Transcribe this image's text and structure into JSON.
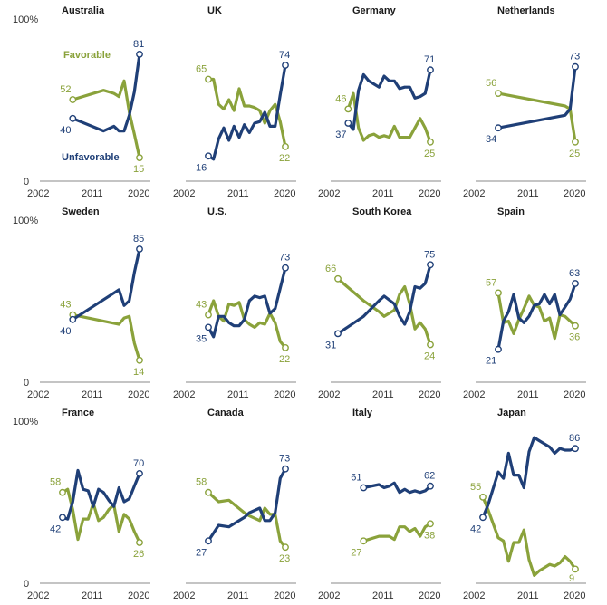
{
  "colors": {
    "favorable": "#8aa23b",
    "unfavorable": "#1f3f77",
    "axis": "#888888"
  },
  "legend": {
    "favorable": "Favorable",
    "unfavorable": "Unfavorable"
  },
  "axis_labels": {
    "y_top": "100%",
    "y_bottom": "0",
    "x_ticks": [
      "2002",
      "2011",
      "2020"
    ]
  },
  "chart_data": {
    "type": "line",
    "xlim": [
      2002,
      2020
    ],
    "ylim": [
      0,
      100
    ],
    "panels": [
      {
        "title": "Australia",
        "favorable": {
          "x": [
            2007,
            2013,
            2015,
            2016,
            2017,
            2018,
            2019,
            2020
          ],
          "y": [
            52,
            58,
            56,
            54,
            64,
            44,
            30,
            15
          ]
        },
        "unfavorable": {
          "x": [
            2007,
            2013,
            2015,
            2016,
            2017,
            2018,
            2019,
            2020
          ],
          "y": [
            40,
            32,
            35,
            32,
            32,
            42,
            57,
            81
          ]
        },
        "label_fav_start": "52",
        "label_fav_end": "15",
        "label_unf_start": "40",
        "label_unf_end": "81"
      },
      {
        "title": "UK",
        "favorable": {
          "x": [
            2005,
            2006,
            2007,
            2008,
            2009,
            2010,
            2011,
            2012,
            2013,
            2014,
            2015,
            2016,
            2017,
            2018,
            2019,
            2020
          ],
          "y": [
            65,
            65,
            49,
            46,
            52,
            45,
            59,
            48,
            48,
            47,
            45,
            37,
            45,
            49,
            38,
            22
          ]
        },
        "unfavorable": {
          "x": [
            2005,
            2006,
            2007,
            2008,
            2009,
            2010,
            2011,
            2012,
            2013,
            2014,
            2015,
            2016,
            2017,
            2018,
            2019,
            2020
          ],
          "y": [
            16,
            14,
            27,
            34,
            26,
            35,
            28,
            36,
            31,
            37,
            38,
            44,
            35,
            35,
            55,
            74
          ]
        },
        "label_fav_start": "65",
        "label_fav_end": "22",
        "label_unf_start": "16",
        "label_unf_end": "74"
      },
      {
        "title": "Germany",
        "favorable": {
          "x": [
            2004,
            2005,
            2006,
            2007,
            2008,
            2009,
            2010,
            2011,
            2012,
            2013,
            2014,
            2015,
            2016,
            2017,
            2018,
            2019,
            2020
          ],
          "y": [
            46,
            56,
            34,
            26,
            29,
            30,
            28,
            29,
            28,
            35,
            28,
            28,
            28,
            34,
            40,
            34,
            25
          ]
        },
        "unfavorable": {
          "x": [
            2004,
            2005,
            2006,
            2007,
            2008,
            2009,
            2010,
            2011,
            2012,
            2013,
            2014,
            2015,
            2016,
            2017,
            2018,
            2019,
            2020
          ],
          "y": [
            37,
            33,
            58,
            68,
            64,
            62,
            60,
            67,
            64,
            64,
            59,
            60,
            60,
            53,
            54,
            56,
            71
          ]
        },
        "label_fav_start": "46",
        "label_fav_end": "25",
        "label_unf_start": "37",
        "label_unf_end": "71"
      },
      {
        "title": "Netherlands",
        "favorable": {
          "x": [
            2005,
            2018,
            2019,
            2020
          ],
          "y": [
            56,
            48,
            46,
            25
          ]
        },
        "unfavorable": {
          "x": [
            2005,
            2018,
            2019,
            2020
          ],
          "y": [
            34,
            42,
            46,
            73
          ]
        },
        "label_fav_start": "56",
        "label_fav_end": "25",
        "label_unf_start": "34",
        "label_unf_end": "73"
      },
      {
        "title": "Sweden",
        "favorable": {
          "x": [
            2007,
            2016,
            2017,
            2018,
            2019,
            2020
          ],
          "y": [
            43,
            37,
            41,
            42,
            25,
            14
          ]
        },
        "unfavorable": {
          "x": [
            2007,
            2016,
            2017,
            2018,
            2019,
            2020
          ],
          "y": [
            40,
            59,
            49,
            52,
            70,
            85
          ]
        },
        "label_fav_start": "43",
        "label_fav_end": "14",
        "label_unf_start": "40",
        "label_unf_end": "85"
      },
      {
        "title": "U.S.",
        "favorable": {
          "x": [
            2005,
            2006,
            2007,
            2008,
            2009,
            2010,
            2011,
            2012,
            2013,
            2014,
            2015,
            2016,
            2017,
            2018,
            2019,
            2020
          ],
          "y": [
            43,
            52,
            42,
            39,
            50,
            49,
            51,
            40,
            37,
            35,
            38,
            37,
            44,
            38,
            26,
            22
          ]
        },
        "unfavorable": {
          "x": [
            2005,
            2006,
            2007,
            2008,
            2009,
            2010,
            2011,
            2012,
            2013,
            2014,
            2015,
            2016,
            2017,
            2018,
            2019,
            2020
          ],
          "y": [
            35,
            29,
            42,
            42,
            38,
            36,
            36,
            40,
            52,
            55,
            54,
            55,
            44,
            47,
            60,
            73
          ]
        },
        "label_fav_start": "43",
        "label_fav_end": "22",
        "label_unf_start": "35",
        "label_unf_end": "73"
      },
      {
        "title": "South Korea",
        "favorable": {
          "x": [
            2002,
            2007,
            2010,
            2011,
            2013,
            2014,
            2015,
            2016,
            2017,
            2018,
            2019,
            2020
          ],
          "y": [
            66,
            52,
            45,
            42,
            46,
            56,
            61,
            50,
            34,
            38,
            34,
            24
          ]
        },
        "unfavorable": {
          "x": [
            2002,
            2007,
            2010,
            2011,
            2013,
            2014,
            2015,
            2016,
            2017,
            2018,
            2019,
            2020
          ],
          "y": [
            31,
            42,
            52,
            55,
            50,
            42,
            37,
            45,
            61,
            60,
            63,
            75
          ]
        },
        "label_fav_start": "66",
        "label_fav_end": "24",
        "label_unf_start": "31",
        "label_unf_end": "75"
      },
      {
        "title": "Spain",
        "favorable": {
          "x": [
            2005,
            2006,
            2007,
            2008,
            2009,
            2010,
            2011,
            2012,
            2013,
            2014,
            2015,
            2016,
            2017,
            2018,
            2019,
            2020
          ],
          "y": [
            57,
            38,
            39,
            31,
            40,
            47,
            55,
            49,
            48,
            39,
            41,
            28,
            43,
            42,
            39,
            36
          ]
        },
        "unfavorable": {
          "x": [
            2005,
            2006,
            2007,
            2008,
            2009,
            2010,
            2011,
            2012,
            2013,
            2014,
            2015,
            2016,
            2017,
            2018,
            2019,
            2020
          ],
          "y": [
            21,
            39,
            45,
            56,
            41,
            38,
            42,
            49,
            50,
            56,
            50,
            56,
            43,
            48,
            53,
            63
          ]
        },
        "label_fav_start": "57",
        "label_fav_end": "36",
        "label_unf_start": "21",
        "label_unf_end": "63"
      },
      {
        "title": "France",
        "favorable": {
          "x": [
            2005,
            2006,
            2007,
            2008,
            2009,
            2010,
            2011,
            2012,
            2013,
            2014,
            2015,
            2016,
            2017,
            2018,
            2019,
            2020
          ],
          "y": [
            58,
            60,
            47,
            28,
            41,
            41,
            51,
            40,
            42,
            47,
            50,
            33,
            44,
            41,
            33,
            26
          ]
        },
        "unfavorable": {
          "x": [
            2005,
            2006,
            2007,
            2008,
            2009,
            2010,
            2011,
            2012,
            2013,
            2014,
            2015,
            2016,
            2017,
            2018,
            2019,
            2020
          ],
          "y": [
            42,
            41,
            52,
            72,
            60,
            59,
            49,
            60,
            58,
            53,
            49,
            61,
            52,
            54,
            62,
            70
          ]
        },
        "label_fav_start": "58",
        "label_fav_end": "26",
        "label_unf_start": "42",
        "label_unf_end": "70"
      },
      {
        "title": "Canada",
        "favorable": {
          "x": [
            2005,
            2007,
            2009,
            2012,
            2013,
            2015,
            2016,
            2017,
            2018,
            2019,
            2020
          ],
          "y": [
            58,
            52,
            53,
            45,
            43,
            40,
            48,
            44,
            44,
            27,
            23
          ]
        },
        "unfavorable": {
          "x": [
            2005,
            2007,
            2009,
            2012,
            2013,
            2015,
            2016,
            2017,
            2018,
            2019,
            2020
          ],
          "y": [
            27,
            37,
            36,
            42,
            45,
            48,
            40,
            40,
            45,
            67,
            73
          ]
        },
        "label_fav_start": "58",
        "label_fav_end": "23",
        "label_unf_start": "27",
        "label_unf_end": "73"
      },
      {
        "title": "Italy",
        "favorable": {
          "x": [
            2007,
            2010,
            2011,
            2012,
            2013,
            2014,
            2015,
            2016,
            2017,
            2018,
            2019,
            2020
          ],
          "y": [
            27,
            30,
            30,
            30,
            28,
            36,
            36,
            33,
            35,
            30,
            36,
            38
          ]
        },
        "unfavorable": {
          "x": [
            2007,
            2010,
            2011,
            2012,
            2013,
            2014,
            2015,
            2016,
            2017,
            2018,
            2019,
            2020
          ],
          "y": [
            61,
            63,
            61,
            62,
            64,
            58,
            60,
            58,
            59,
            58,
            59,
            62
          ]
        },
        "label_fav_start": "27",
        "label_fav_end": "38",
        "label_unf_start": "61",
        "label_unf_end": "62"
      },
      {
        "title": "Japan",
        "favorable": {
          "x": [
            2002,
            2003,
            2005,
            2006,
            2007,
            2008,
            2009,
            2010,
            2011,
            2012,
            2013,
            2015,
            2016,
            2017,
            2018,
            2019,
            2020
          ],
          "y": [
            55,
            47,
            29,
            27,
            14,
            26,
            26,
            34,
            15,
            5,
            8,
            12,
            11,
            13,
            17,
            14,
            9
          ]
        },
        "unfavorable": {
          "x": [
            2002,
            2003,
            2005,
            2006,
            2007,
            2008,
            2009,
            2010,
            2011,
            2012,
            2013,
            2015,
            2016,
            2017,
            2018,
            2019,
            2020
          ],
          "y": [
            42,
            50,
            71,
            67,
            83,
            69,
            69,
            61,
            84,
            93,
            91,
            87,
            83,
            86,
            85,
            85,
            86
          ]
        },
        "label_fav_start": "55",
        "label_fav_end": "9",
        "label_unf_start": "42",
        "label_unf_end": "86"
      }
    ]
  }
}
